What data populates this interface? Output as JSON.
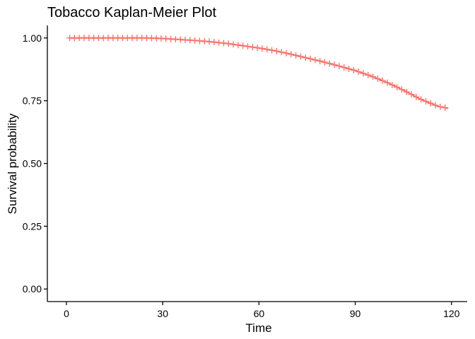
{
  "chart_data": {
    "type": "line",
    "title": "Tobacco Kaplan-Meier Plot",
    "xlabel": "Time",
    "ylabel": "Survival probability",
    "xlim": [
      -5.95,
      124.9
    ],
    "ylim": [
      -0.05,
      1.05
    ],
    "xticks": [
      0,
      30,
      60,
      90,
      120
    ],
    "yticks": [
      0.0,
      0.25,
      0.5,
      0.75,
      1.0
    ],
    "ytick_labels": [
      "0.00",
      "0.25",
      "0.50",
      "0.75",
      "1.00"
    ],
    "grid": false,
    "legend": "none",
    "series": [
      {
        "color": "#F8766D",
        "censor_mark": "+",
        "x": [
          1,
          5,
          10,
          15,
          20,
          25,
          30,
          35,
          40,
          45,
          50,
          55,
          60,
          65,
          70,
          75,
          80,
          85,
          90,
          95,
          100,
          105,
          108,
          110,
          113,
          116,
          119
        ],
        "y": [
          1.0,
          1.0,
          1.0,
          1.0,
          1.0,
          1.0,
          0.998,
          0.994,
          0.99,
          0.985,
          0.978,
          0.969,
          0.96,
          0.949,
          0.935,
          0.92,
          0.905,
          0.888,
          0.87,
          0.848,
          0.822,
          0.792,
          0.772,
          0.758,
          0.742,
          0.727,
          0.72
        ]
      }
    ]
  }
}
